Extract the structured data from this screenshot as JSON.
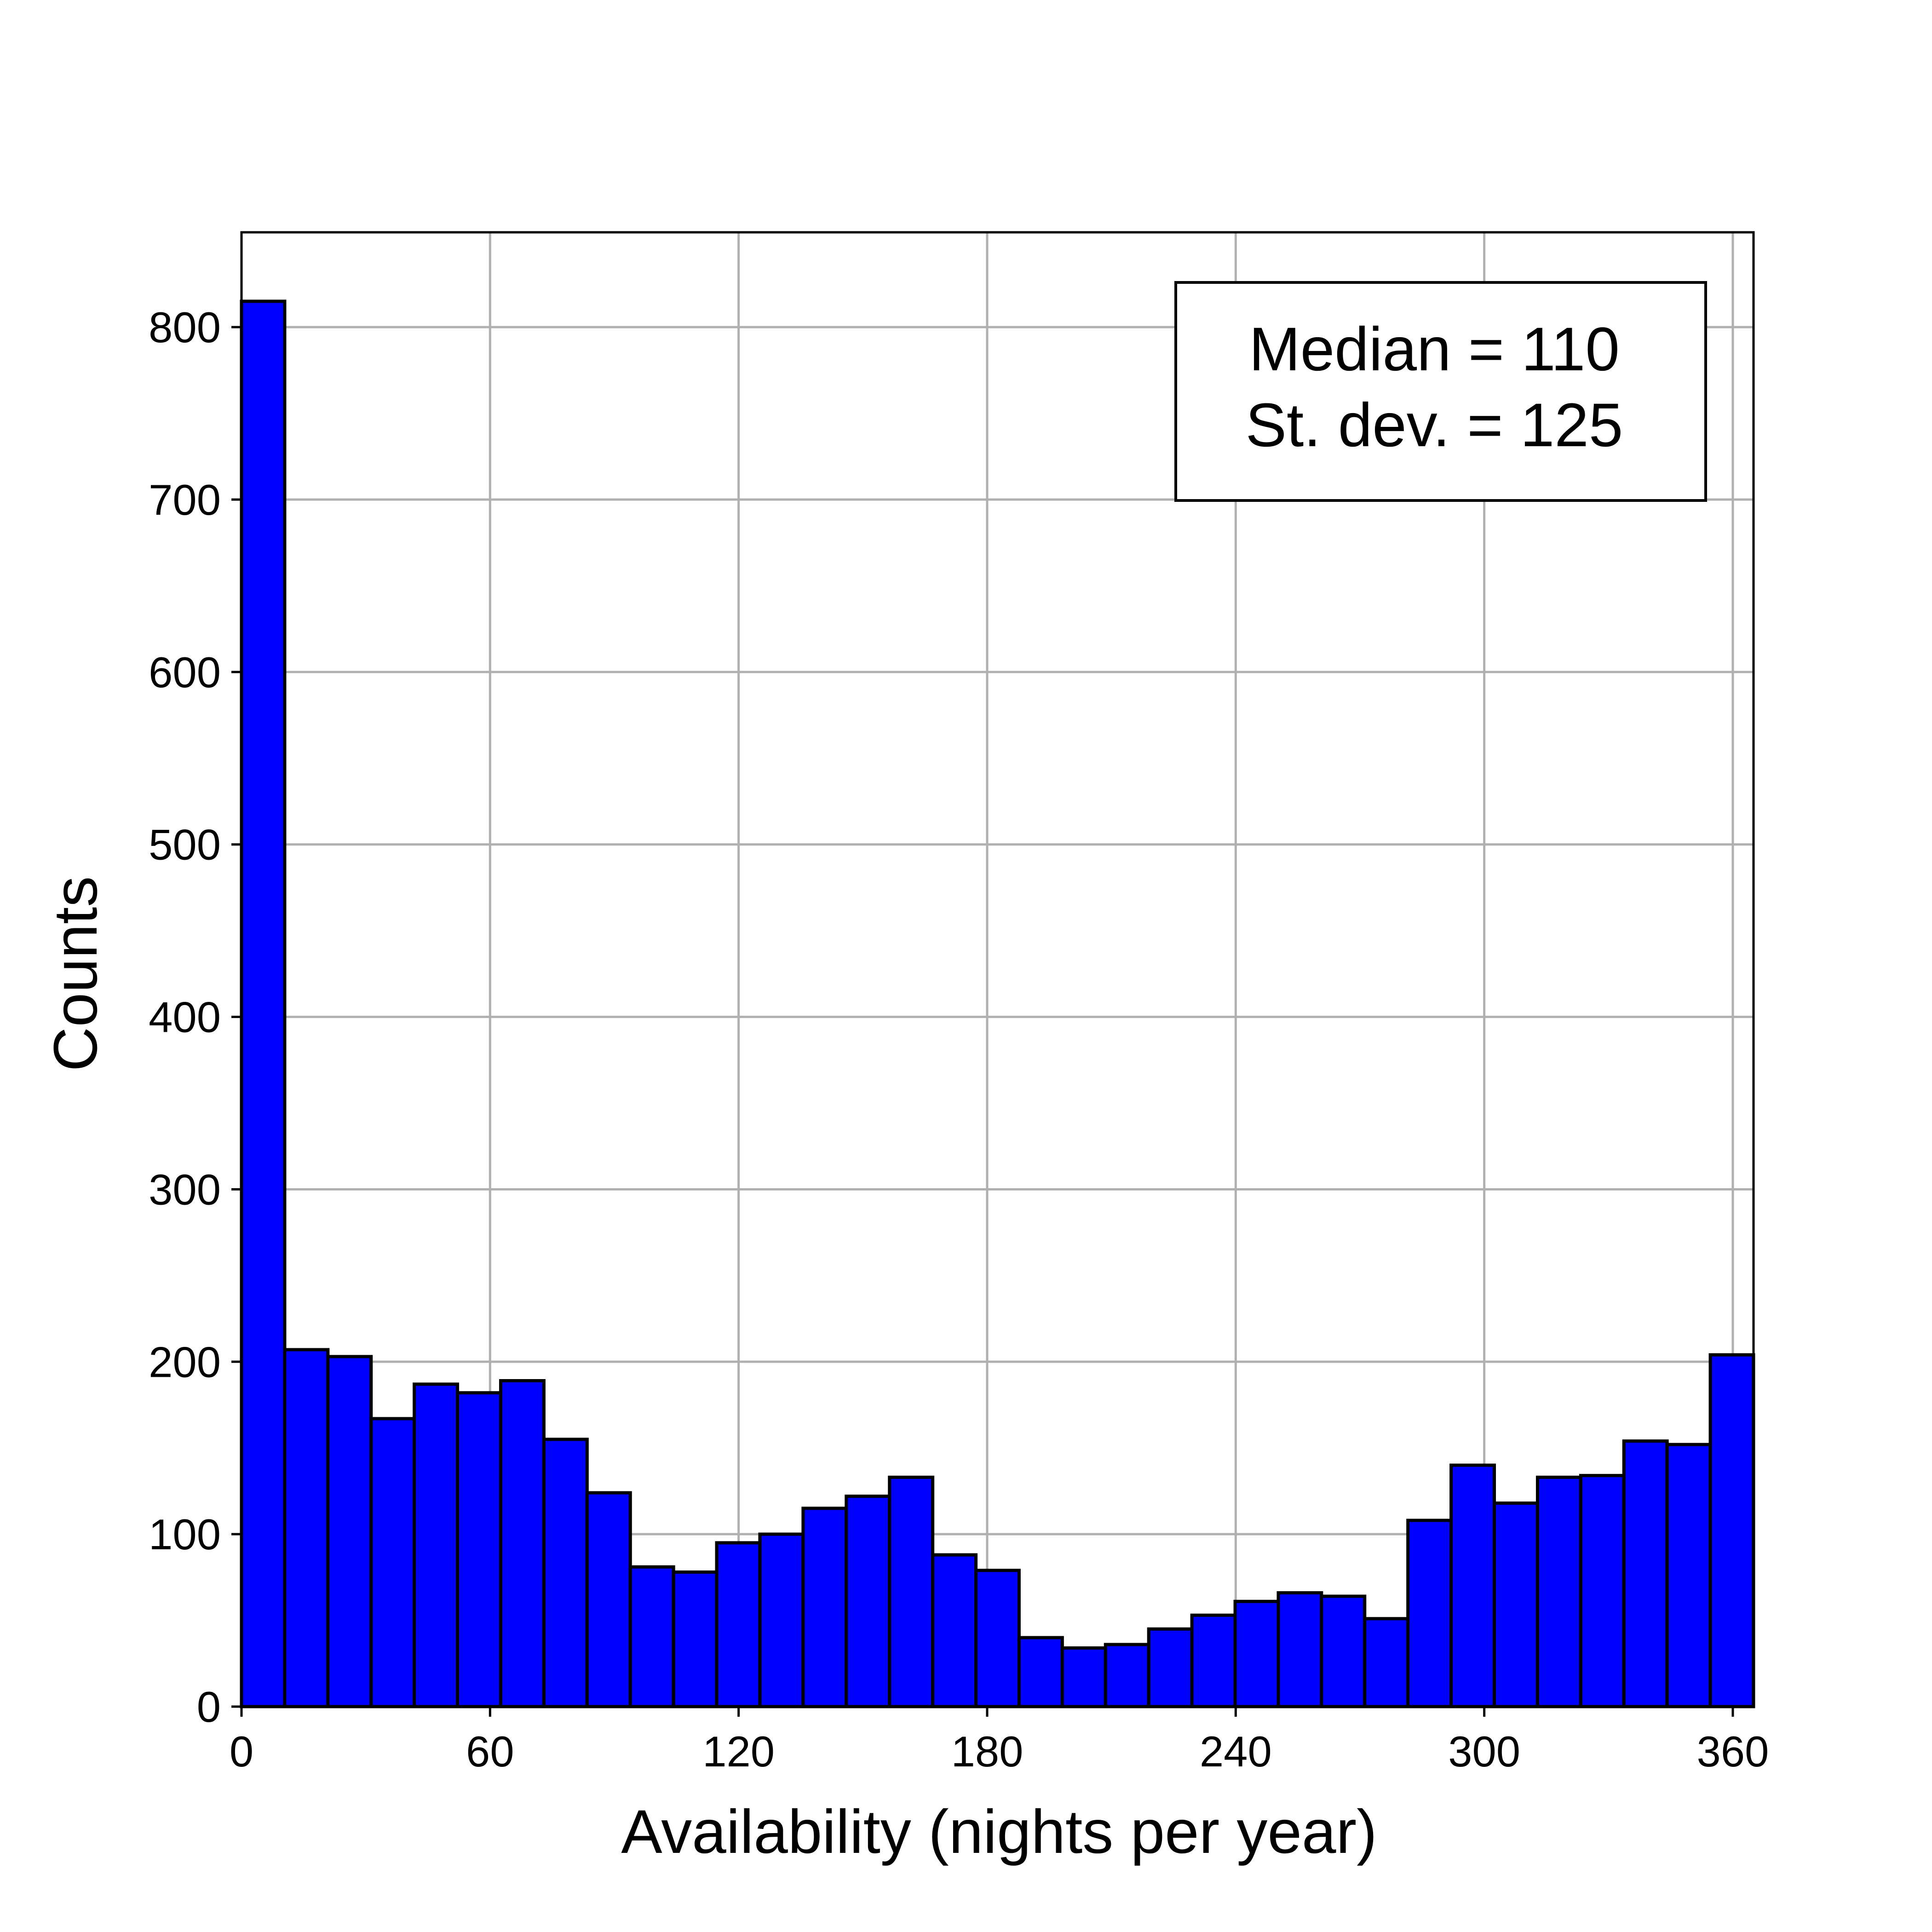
{
  "chart_data": {
    "type": "bar",
    "subtype": "histogram",
    "xlabel": "Availability (nights per year)",
    "ylabel": "Counts",
    "xlim": [
      0,
      365
    ],
    "ylim": [
      0,
      855
    ],
    "xticks": [
      0,
      60,
      120,
      180,
      240,
      300,
      360
    ],
    "yticks": [
      0,
      100,
      200,
      300,
      400,
      500,
      600,
      700,
      800
    ],
    "grid": true,
    "bar_color": "#0000ff",
    "bin_width": 10.43,
    "bin_edges": [
      0,
      10.43,
      20.86,
      31.29,
      41.71,
      52.14,
      62.57,
      73,
      83.43,
      93.86,
      104.29,
      114.71,
      125.14,
      135.57,
      146,
      156.43,
      166.86,
      177.29,
      187.71,
      198.14,
      208.57,
      219,
      229.43,
      239.86,
      250.29,
      260.71,
      271.14,
      281.57,
      292,
      302.43,
      312.86,
      323.29,
      333.71,
      344.14,
      354.57,
      365
    ],
    "values": [
      815,
      207,
      203,
      167,
      187,
      182,
      189,
      155,
      124,
      81,
      78,
      95,
      100,
      115,
      122,
      133,
      88,
      79,
      40,
      34,
      36,
      45,
      53,
      61,
      66,
      64,
      51,
      108,
      140,
      118,
      133,
      134,
      154,
      152,
      204
    ],
    "annotation": {
      "lines": [
        "Median = 110",
        "St. dev. = 125"
      ],
      "position": "top-right"
    }
  }
}
